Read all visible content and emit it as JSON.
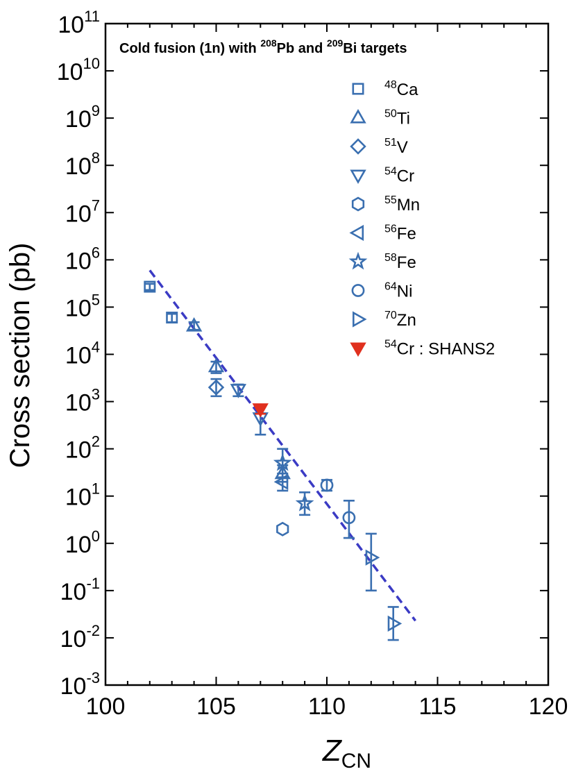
{
  "chart_data": {
    "type": "scatter",
    "title_parts": [
      {
        "text": "Cold fusion (1n) with ",
        "sup": false
      },
      {
        "text": "208",
        "sup": true
      },
      {
        "text": "Pb and ",
        "sup": false
      },
      {
        "text": "209",
        "sup": true
      },
      {
        "text": "Bi targets",
        "sup": false
      }
    ],
    "ylabel": "Cross section (pb)",
    "xlabel": {
      "main": "Z",
      "sub": "CN"
    },
    "xlim": [
      100,
      120
    ],
    "xticks": [
      "100",
      "105",
      "110",
      "115",
      "120"
    ],
    "ylim_exp": [
      -3,
      11
    ],
    "yticks": [
      {
        "base": "10",
        "exp": "11"
      },
      {
        "base": "10",
        "exp": "10"
      },
      {
        "base": "10",
        "exp": "9"
      },
      {
        "base": "10",
        "exp": "8"
      },
      {
        "base": "10",
        "exp": "7"
      },
      {
        "base": "10",
        "exp": "6"
      },
      {
        "base": "10",
        "exp": "5"
      },
      {
        "base": "10",
        "exp": "4"
      },
      {
        "base": "10",
        "exp": "3"
      },
      {
        "base": "10",
        "exp": "2"
      },
      {
        "base": "10",
        "exp": "1"
      },
      {
        "base": "10",
        "exp": "0"
      },
      {
        "base": "10",
        "exp": "-1"
      },
      {
        "base": "10",
        "exp": "-2"
      },
      {
        "base": "10",
        "exp": "-3"
      }
    ],
    "fit_line": {
      "x": [
        102,
        114
      ],
      "y": [
        600000,
        0.023
      ],
      "style": "dashed",
      "color": "#3b3bc4"
    },
    "series": [
      {
        "name": "48Ca",
        "sup": "48",
        "label": "Ca",
        "marker": "square",
        "filled": false,
        "color": "#3a6fb0",
        "points": [
          {
            "x": 102,
            "y": 270000,
            "lo": 230000,
            "hi": 310000
          },
          {
            "x": 103,
            "y": 60000,
            "lo": 48000,
            "hi": 72000
          }
        ]
      },
      {
        "name": "50Ti",
        "sup": "50",
        "label": "Ti",
        "marker": "triangle-up",
        "filled": false,
        "color": "#3a6fb0",
        "points": [
          {
            "x": 104,
            "y": 40000,
            "lo": 33000,
            "hi": 48000
          },
          {
            "x": 105,
            "y": 5500,
            "lo": 4000,
            "hi": 7000
          },
          {
            "x": 108,
            "y": 30,
            "lo": 20,
            "hi": 45
          }
        ]
      },
      {
        "name": "51V",
        "sup": "51",
        "label": "V",
        "marker": "diamond",
        "filled": false,
        "color": "#3a6fb0",
        "points": [
          {
            "x": 105,
            "y": 2000,
            "lo": 1300,
            "hi": 3000
          }
        ]
      },
      {
        "name": "54Cr",
        "sup": "54",
        "label": "Cr",
        "marker": "triangle-down",
        "filled": false,
        "color": "#3a6fb0",
        "points": [
          {
            "x": 106,
            "y": 1800,
            "lo": 1300,
            "hi": 2300
          },
          {
            "x": 107,
            "y": 450,
            "lo": 200,
            "hi": 800
          }
        ]
      },
      {
        "name": "55Mn",
        "sup": "55",
        "label": "Mn",
        "marker": "hexagon",
        "filled": false,
        "color": "#3a6fb0",
        "points": [
          {
            "x": 108,
            "y": 2
          }
        ]
      },
      {
        "name": "56Fe",
        "sup": "56",
        "label": "Fe",
        "marker": "triangle-left",
        "filled": false,
        "color": "#3a6fb0",
        "points": [
          {
            "x": 108,
            "y": 20,
            "lo": 13,
            "hi": 30
          }
        ]
      },
      {
        "name": "58Fe",
        "sup": "58",
        "label": "Fe",
        "marker": "star",
        "filled": false,
        "color": "#3a6fb0",
        "points": [
          {
            "x": 108,
            "y": 50,
            "lo": 25,
            "hi": 100
          },
          {
            "x": 109,
            "y": 7,
            "lo": 4,
            "hi": 12
          }
        ]
      },
      {
        "name": "64Ni",
        "sup": "64",
        "label": "Ni",
        "marker": "circle",
        "filled": false,
        "color": "#3a6fb0",
        "points": [
          {
            "x": 110,
            "y": 17,
            "lo": 13,
            "hi": 22
          },
          {
            "x": 111,
            "y": 3.5,
            "lo": 1.3,
            "hi": 8
          }
        ]
      },
      {
        "name": "70Zn",
        "sup": "70",
        "label": "Zn",
        "marker": "triangle-right",
        "filled": false,
        "color": "#3a6fb0",
        "points": [
          {
            "x": 112,
            "y": 0.5,
            "lo": 0.1,
            "hi": 1.6
          },
          {
            "x": 113,
            "y": 0.02,
            "lo": 0.009,
            "hi": 0.045
          }
        ]
      },
      {
        "name": "54Cr : SHANS2",
        "sup": "54",
        "label": "Cr : SHANS2",
        "marker": "triangle-down",
        "filled": true,
        "color": "#e0301e",
        "points": [
          {
            "x": 107,
            "y": 700,
            "lo": 550,
            "hi": 850
          }
        ]
      }
    ]
  }
}
